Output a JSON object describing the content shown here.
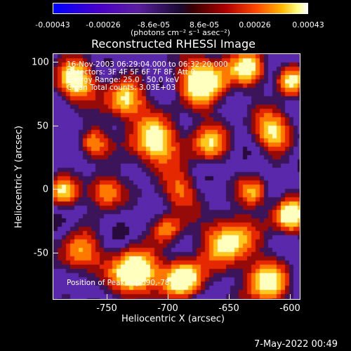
{
  "colorbar": {
    "ticks": [
      "-0.00043",
      "-0.00026",
      "-8.6e-05",
      "8.6e-05",
      "0.00026",
      "0.00043"
    ],
    "unit": "(photons cm⁻² s⁻¹ asec⁻²)"
  },
  "title": "Reconstructed RHESSI Image",
  "annotations": {
    "line1": "16-Nov-2003 06:29:04.000 to 06:32:20.000",
    "line2": "Detectors: 3F 4F 5F 6F 7F 8F, Att 0",
    "line3": "Energy Range: 25.0 - 50.0 keV",
    "line4": "Clean    Total counts: 3.03E+03",
    "peak": "Position of Peak = [-690,-78]"
  },
  "xaxis": {
    "label": "Heliocentric X (arcsec)",
    "ticks": [
      "-750",
      "-700",
      "-650",
      "-600"
    ]
  },
  "yaxis": {
    "label": "Heliocentric Y (arcsec)",
    "ticks": [
      "100",
      "50",
      "0",
      "-50"
    ]
  },
  "footer": {
    "date": "7-May-2022 00:49"
  },
  "colors": {
    "background": "#000000",
    "text": "#ffffff"
  }
}
